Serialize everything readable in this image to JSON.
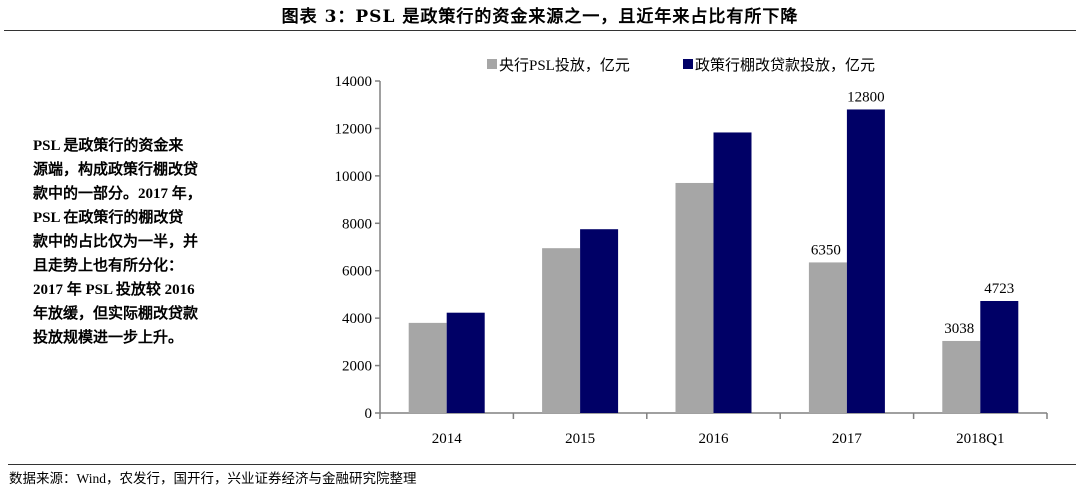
{
  "title": "图表 3：PSL 是政策行的资金来源之一，且近年来占比有所下降",
  "side_text": [
    "PSL  是政策行的资金来",
    "源端，构成政策行棚改贷",
    "款中的一部分。2017 年，",
    "PSL  在政策行的棚改贷",
    "款中的占比仅为一半，并",
    "且走势上也有所分化：",
    "2017 年 PSL 投放较 2016",
    "年放缓，但实际棚改贷款",
    "投放规模进一步上升。"
  ],
  "footer": "数据来源：Wind，农发行，国开行，兴业证券经济与金融研究院整理",
  "chart_data": {
    "type": "bar",
    "categories": [
      "2014",
      "2015",
      "2016",
      "2017",
      "2018Q1"
    ],
    "series": [
      {
        "name": "央行PSL投放，亿元",
        "color": "#a6a6a6",
        "values": [
          3800,
          6950,
          9700,
          6350,
          3038
        ],
        "labels": [
          null,
          null,
          null,
          "6350",
          "3038"
        ]
      },
      {
        "name": "政策行棚改贷款投放，亿元",
        "color": "#000066",
        "values": [
          4230,
          7750,
          11830,
          12800,
          4723
        ],
        "labels": [
          null,
          null,
          null,
          "12800",
          "4723"
        ]
      }
    ],
    "ylim": [
      0,
      14000
    ],
    "yticks": [
      "0",
      "2000",
      "4000",
      "6000",
      "8000",
      "10000",
      "12000",
      "14000"
    ],
    "grid": false,
    "legend_position": "top"
  }
}
